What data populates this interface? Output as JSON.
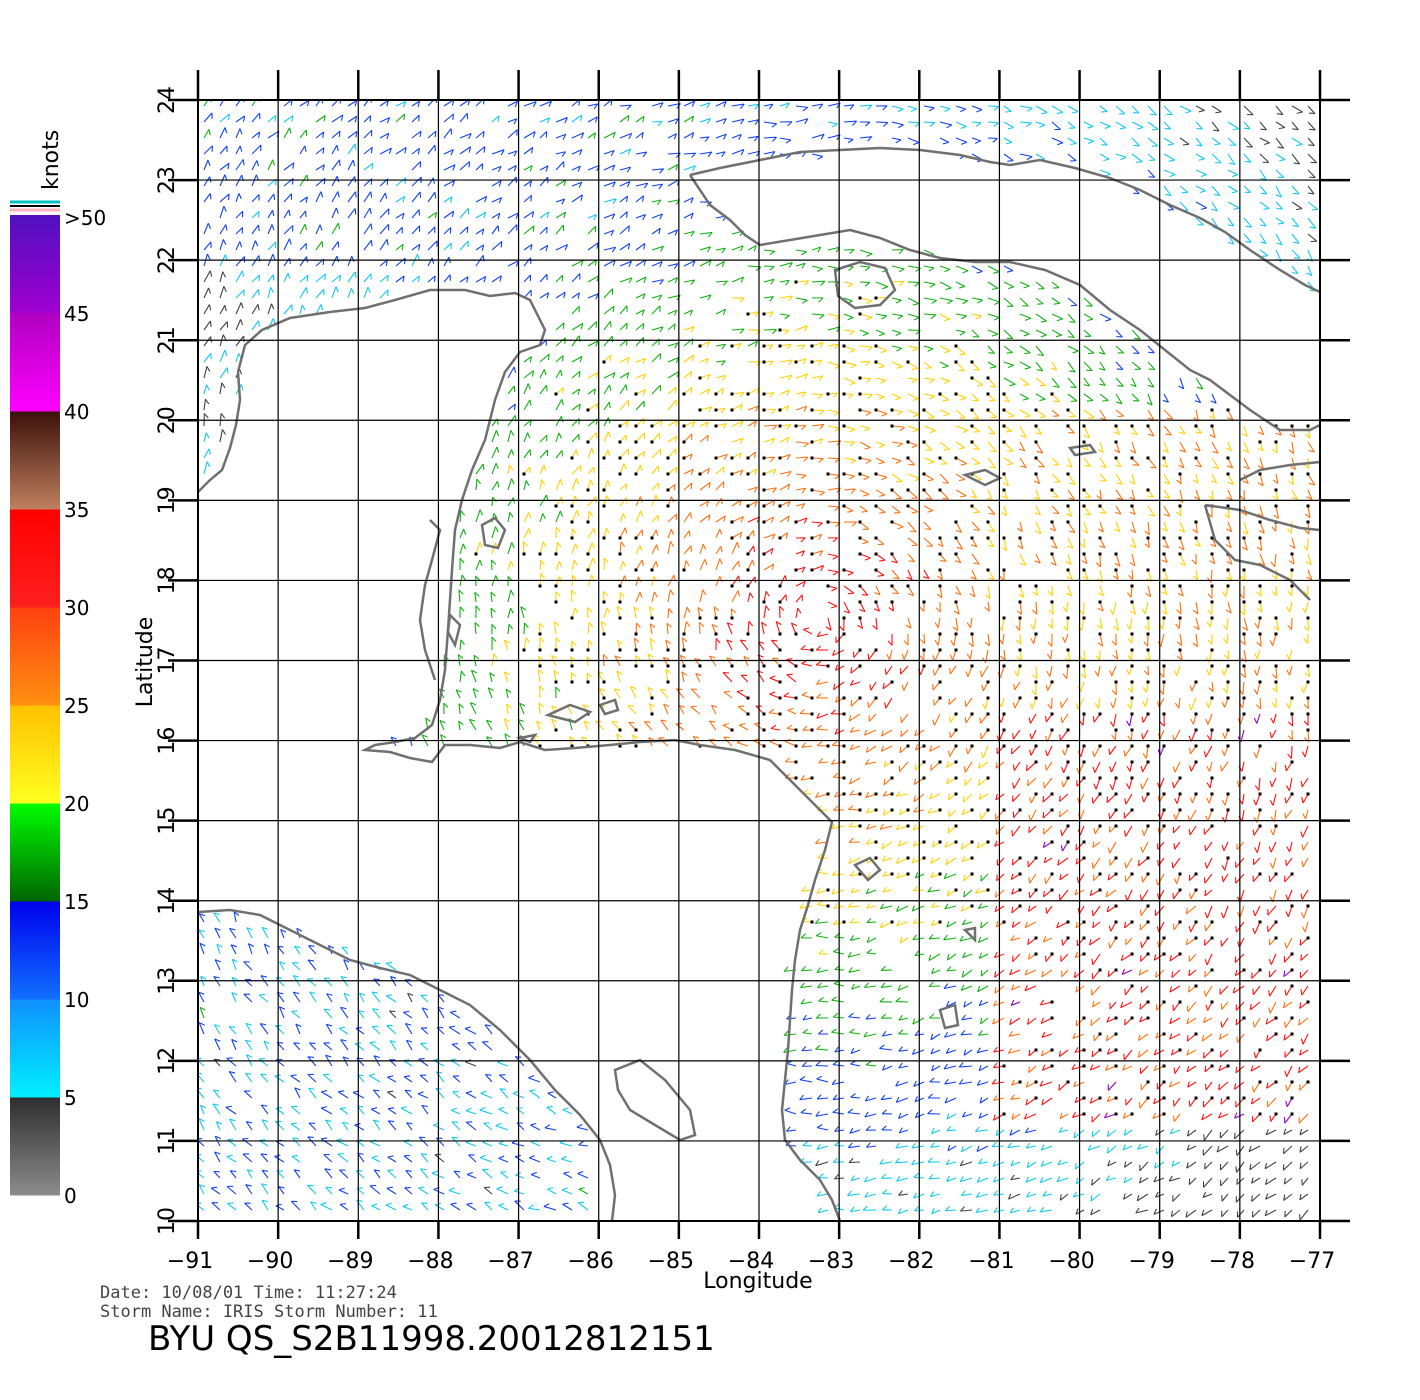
{
  "map": {
    "xlabel": "Longitude",
    "ylabel": "Latitude",
    "lon_ticks": [
      "-91",
      "-90",
      "-89",
      "-88",
      "-87",
      "-86",
      "-85",
      "-84",
      "-83",
      "-82",
      "-81",
      "-80",
      "-79",
      "-78",
      "-77"
    ],
    "lat_ticks": [
      "10",
      "11",
      "12",
      "13",
      "14",
      "15",
      "16",
      "17",
      "18",
      "19",
      "20",
      "21",
      "22",
      "23",
      "24"
    ],
    "lon_range": [
      -91,
      -77
    ],
    "lat_range": [
      10,
      24
    ]
  },
  "color_scale": {
    "unit_label": "knots",
    "labels": [
      "0",
      "5",
      "10",
      "15",
      "20",
      "25",
      "30",
      "35",
      "40",
      "45",
      ">50"
    ],
    "bands": [
      {
        "range": "0-5",
        "colors": [
          "#8c8c8c",
          "#2e2e2e"
        ]
      },
      {
        "range": "5-10",
        "colors": [
          "#00f0ff",
          "#1090ff"
        ]
      },
      {
        "range": "10-15",
        "colors": [
          "#1070ff",
          "#0000ee"
        ]
      },
      {
        "range": "15-20",
        "colors": [
          "#006400",
          "#00ff00"
        ]
      },
      {
        "range": "20-25",
        "colors": [
          "#ffff20",
          "#ffc000"
        ]
      },
      {
        "range": "25-30",
        "colors": [
          "#ff9010",
          "#ff4010"
        ]
      },
      {
        "range": "30-35",
        "colors": [
          "#ff2020",
          "#ff0000"
        ]
      },
      {
        "range": "35-40",
        "colors": [
          "#c08060",
          "#3a1008"
        ]
      },
      {
        "range": "40-45",
        "colors": [
          "#ff00ff",
          "#b000c0"
        ]
      },
      {
        "range": "45-50",
        "colors": [
          "#a000d0",
          "#5010c0"
        ]
      }
    ]
  },
  "footer": {
    "date_line": "Date: 10/08/01   Time: 11:27:24",
    "storm_line": "Storm Name: IRIS   Storm Number: 11",
    "title": "BYU QS_S2B11998.20012812151"
  },
  "colors": {
    "coastline": "#707070",
    "grid": "#000000",
    "rain_flag": "#000000"
  }
}
